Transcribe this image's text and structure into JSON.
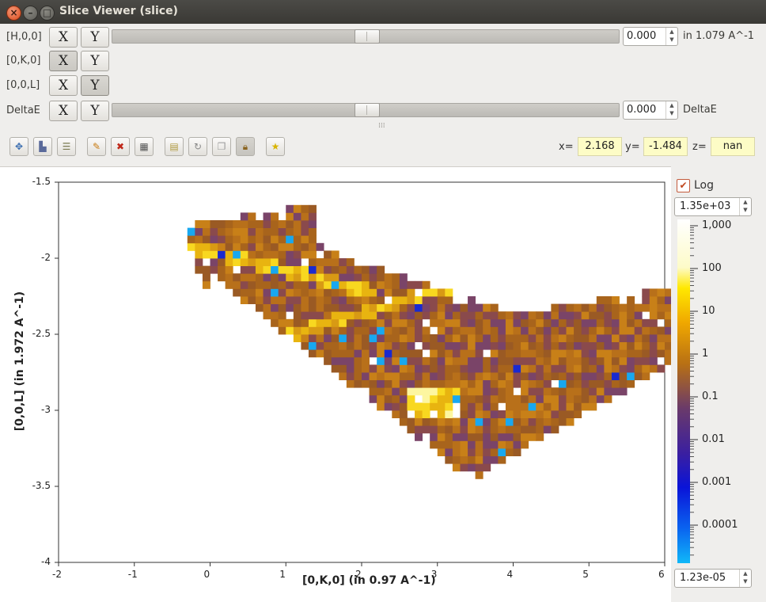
{
  "window": {
    "title": "Slice Viewer (slice)",
    "close_glyph": "×",
    "minimize_glyph": "–",
    "maximize_glyph": "□"
  },
  "dimensions": [
    {
      "label": "[H,0,0]",
      "x_label": "X",
      "y_label": "Y",
      "selected": "none",
      "has_slider": true,
      "value": "0.000",
      "unit": "in 1.079 A^-1"
    },
    {
      "label": "[0,K,0]",
      "x_label": "X",
      "y_label": "Y",
      "selected": "X",
      "has_slider": false
    },
    {
      "label": "[0,0,L]",
      "x_label": "X",
      "y_label": "Y",
      "selected": "Y",
      "has_slider": false
    },
    {
      "label": "DeltaE",
      "x_label": "X",
      "y_label": "Y",
      "selected": "none",
      "has_slider": true,
      "value": "0.000",
      "unit": "DeltaE"
    }
  ],
  "toolbar": {
    "icons": [
      "zoom-extents-icon",
      "rebin-icon",
      "peaks-icon",
      "line-pencil-icon",
      "clear-line-icon",
      "grid-icon",
      "non-orthogonal-icon",
      "refresh-icon",
      "overlay-icon",
      "lock-icon",
      "favorite-star-icon"
    ],
    "x_label": "x=",
    "x_value": "2.168",
    "y_label": "y=",
    "y_value": "-1.484",
    "z_label": "z=",
    "z_value": "nan"
  },
  "plot": {
    "xlabel": "[0,K,0] (in 0.97 A^-1)",
    "ylabel": "[0,0,L] (in 1.972 A^-1)",
    "xlim": [
      -2,
      6
    ],
    "ylim": [
      -4,
      -1.5
    ],
    "xticks": [
      "-2",
      "-1",
      "0",
      "1",
      "2",
      "3",
      "4",
      "5",
      "6"
    ],
    "yticks": [
      "-1.5",
      "-2",
      "-2.5",
      "-3",
      "-3.5",
      "-4"
    ]
  },
  "colorbar": {
    "log_label": "Log",
    "log_checked": true,
    "max_value": "1.35e+03",
    "min_value": "1.23e-05",
    "ticks": [
      "1,000",
      "100",
      "10",
      "1",
      "0.1",
      "0.01",
      "0.001",
      "0.0001"
    ]
  }
}
